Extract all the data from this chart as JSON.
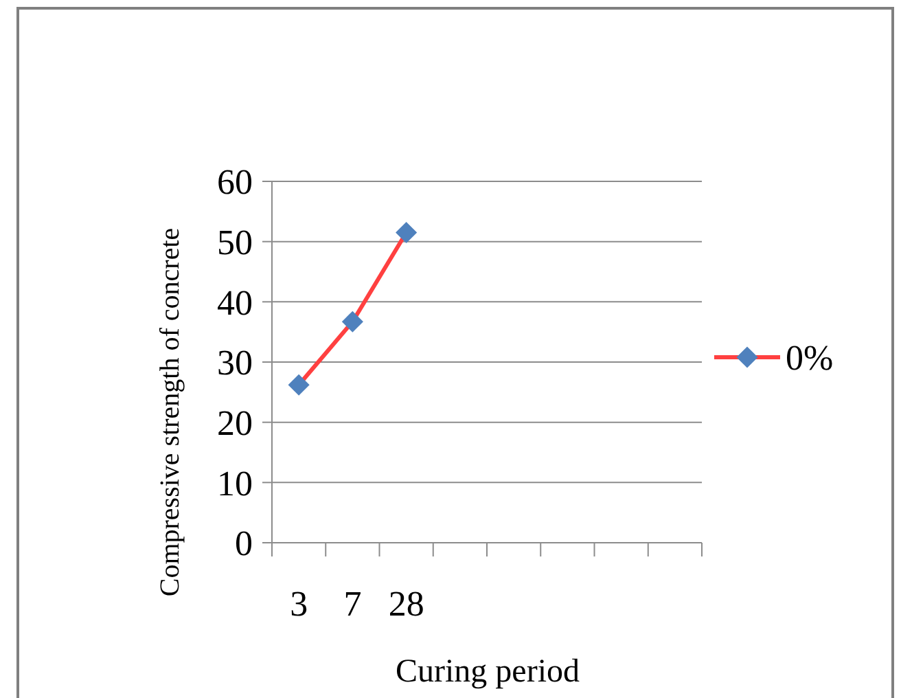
{
  "chart_data": {
    "type": "line",
    "xlabel": "Curing period",
    "ylabel": "Compressive strength of concrete",
    "categories": [
      "3",
      "7",
      "28",
      null,
      null,
      null,
      null,
      null
    ],
    "series": [
      {
        "name": "0%",
        "color": "#ff4040",
        "values": [
          26.2,
          36.7,
          51.5,
          null,
          null,
          null,
          null,
          null
        ]
      }
    ],
    "ylim": [
      0,
      60
    ],
    "yticks": [
      0,
      10,
      20,
      30,
      40,
      50,
      60
    ],
    "grid": "y",
    "legend": "right",
    "marker": "diamond"
  }
}
